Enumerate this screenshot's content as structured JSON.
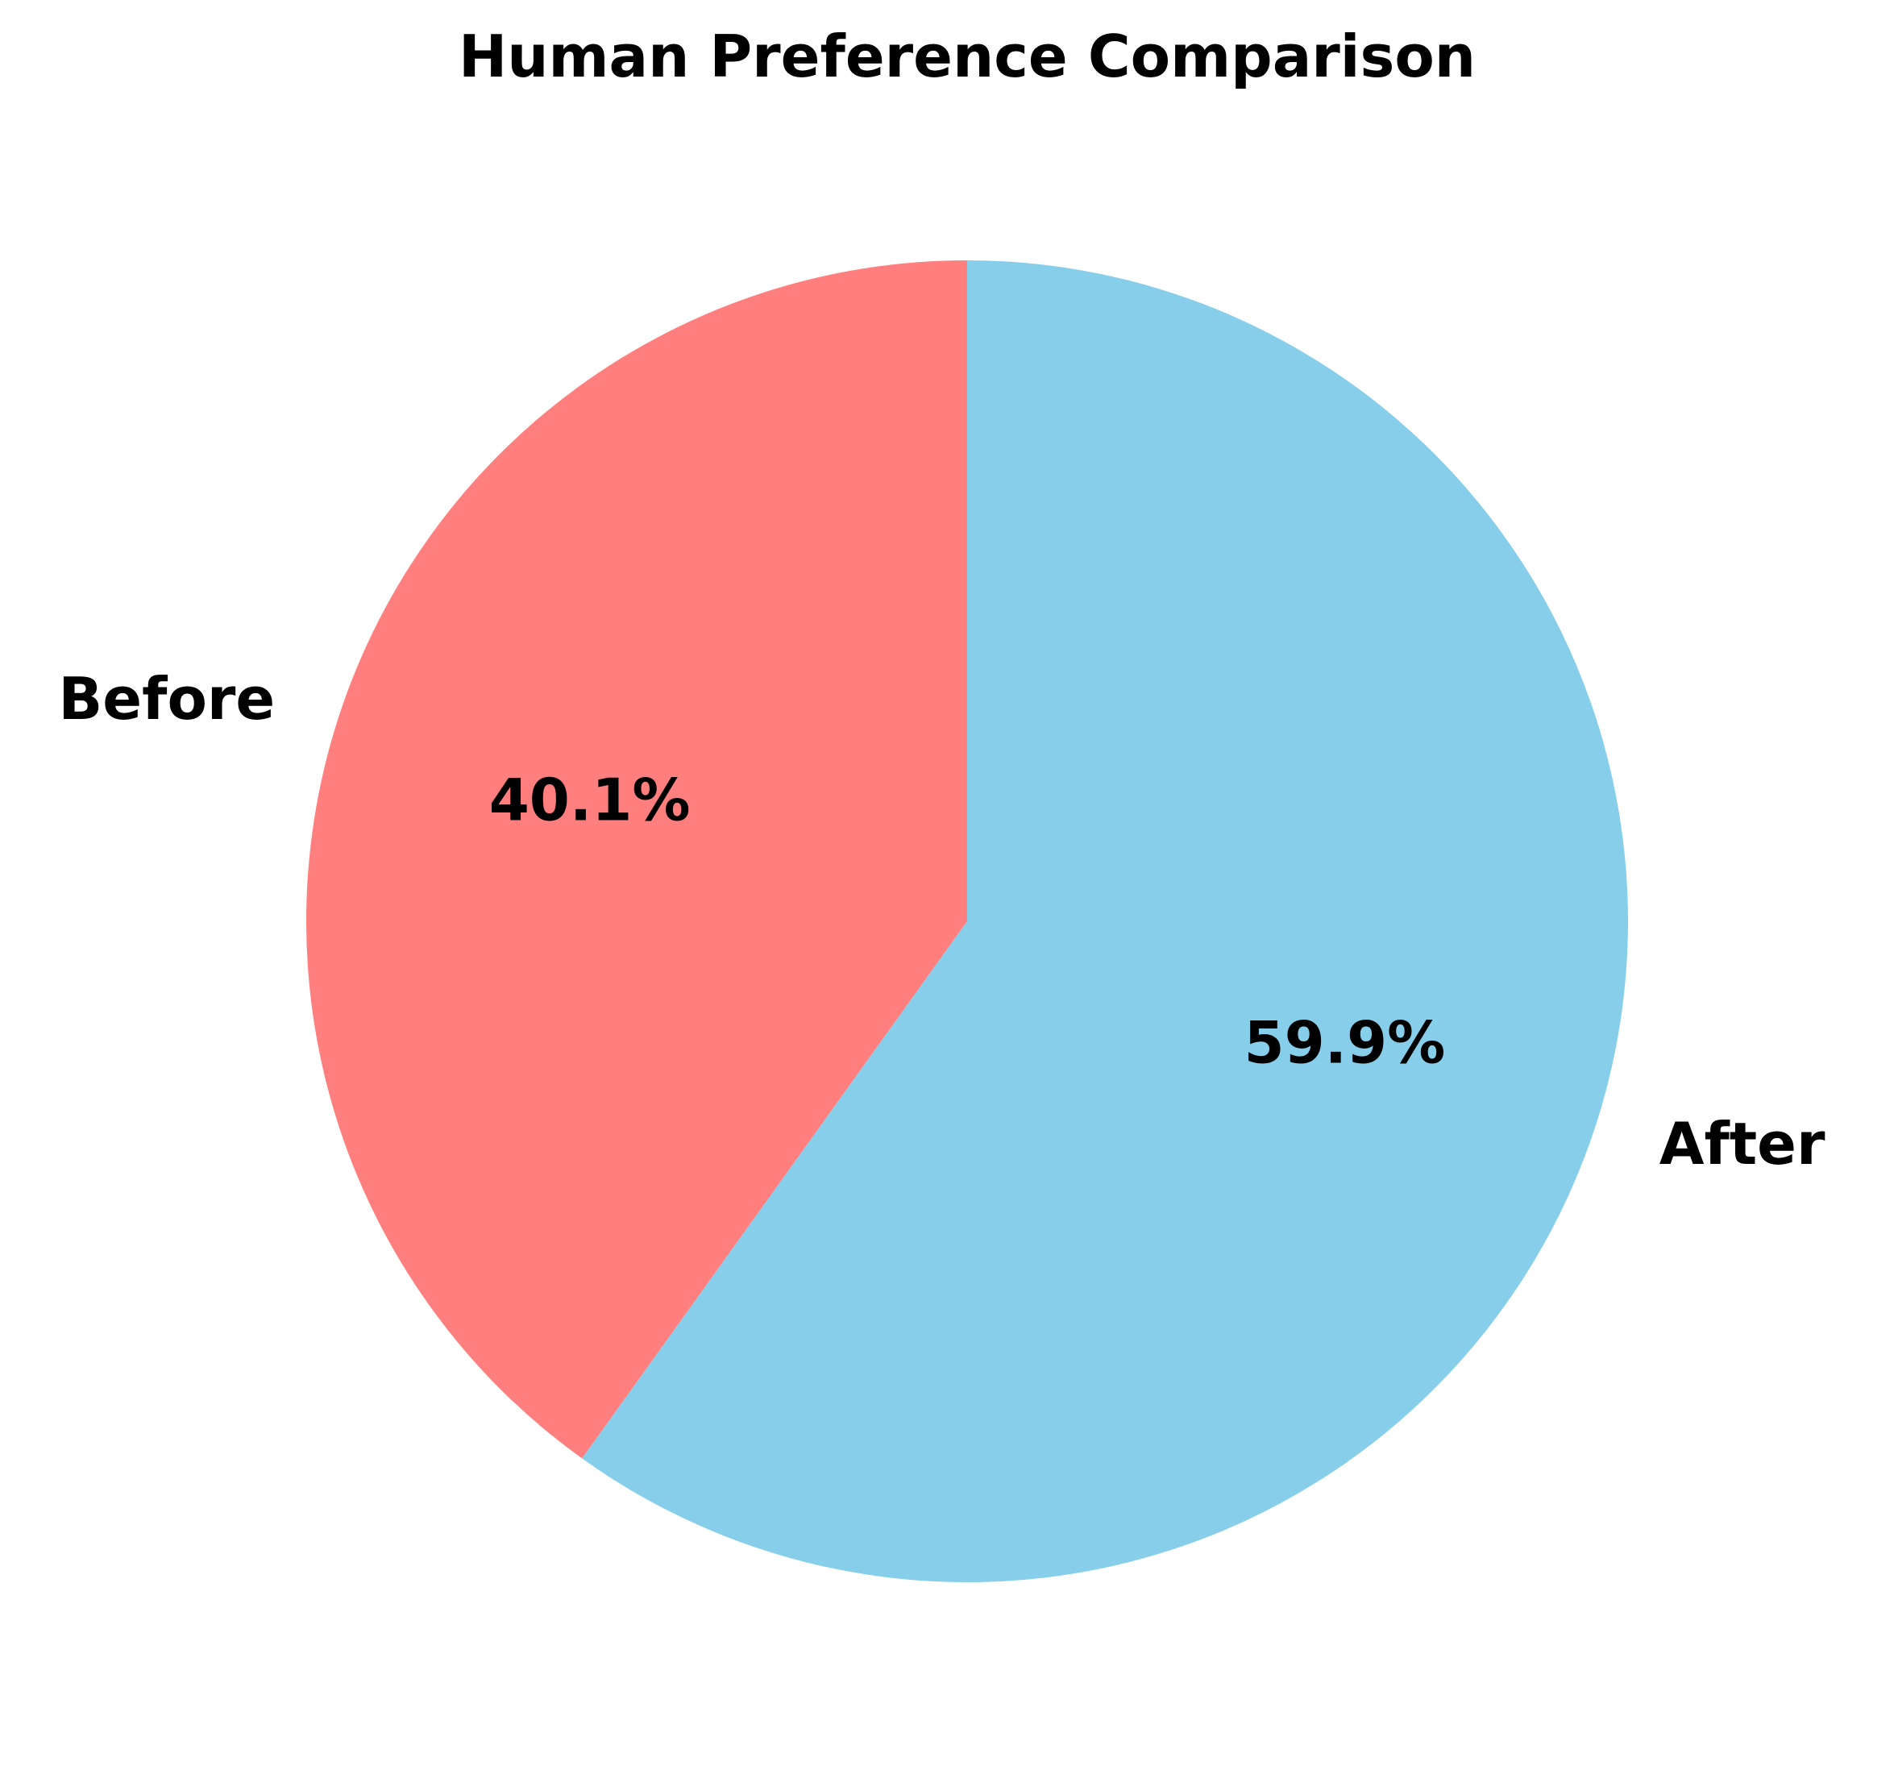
{
  "chart_data": {
    "type": "pie",
    "title": "Human Preference Comparison",
    "slices": [
      {
        "label": "Before",
        "value": 40.1,
        "pct_label": "40.1%",
        "color": "#FF7F7F"
      },
      {
        "label": "After",
        "value": 59.9,
        "pct_label": "59.9%",
        "color": "#87CEEB"
      }
    ],
    "start_angle_deg": 90,
    "direction": "counterclockwise",
    "legend": "none"
  }
}
